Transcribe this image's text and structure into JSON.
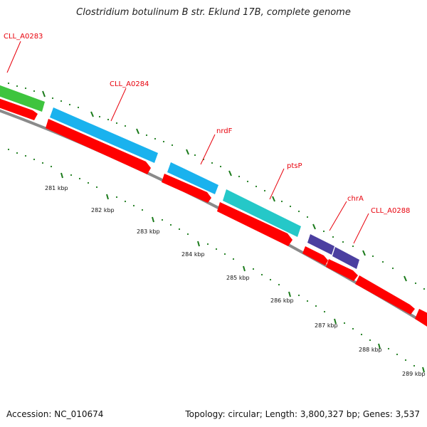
{
  "title": "Clostridium botulinum B str. Eklund 17B, complete genome",
  "footer": {
    "accession": "Accession: NC_010674",
    "summary": "Topology: circular; Length: 3,800,327 bp; Genes: 3,537"
  },
  "colors": {
    "backbone": "#8a8a8a",
    "forward_gene": "#ff0000",
    "tick": "#1a7a1a",
    "label": "#e8000b",
    "feature_green": "#3ec43e",
    "feature_blue": "#1ab2ee",
    "feature_teal": "#25c8c8",
    "feature_purple": "#4b3fa0"
  },
  "genes": [
    {
      "id": "CLL_A0283",
      "label": "CLL_A0283",
      "type": "CDS",
      "color": "#3ec43e"
    },
    {
      "id": "CLL_A0284",
      "label": "CLL_A0284",
      "type": "CDS",
      "color": "#1ab2ee"
    },
    {
      "id": "nrdF",
      "label": "nrdF",
      "type": "CDS",
      "color": "#1ab2ee"
    },
    {
      "id": "ptsP",
      "label": "ptsP",
      "type": "CDS",
      "color": "#25c8c8"
    },
    {
      "id": "chrA",
      "label": "chrA",
      "type": "CDS",
      "color": "#4b3fa0"
    },
    {
      "id": "CLL_A0288",
      "label": "CLL_A0288",
      "type": "CDS",
      "color": "#4b3fa0"
    }
  ],
  "kbp_ticks": [
    "281 kbp",
    "282 kbp",
    "283 kbp",
    "284 kbp",
    "285 kbp",
    "286 kbp",
    "287 kbp",
    "288 kbp",
    "289 kbp"
  ]
}
